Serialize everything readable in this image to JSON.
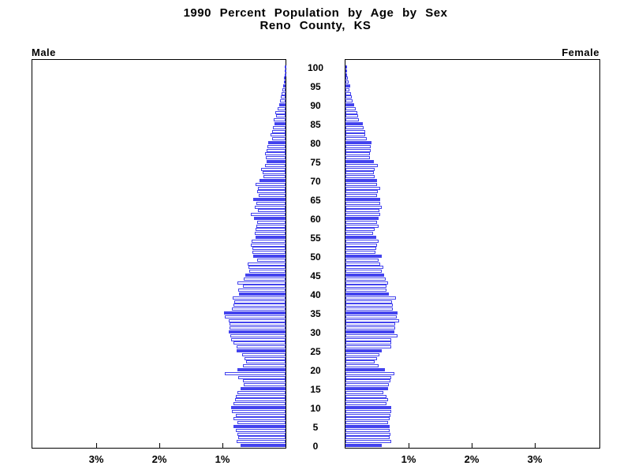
{
  "title": {
    "line1": "1990 Percent Population by Age by Sex",
    "line2": "Reno County, KS"
  },
  "panel_labels": {
    "left": "Male",
    "right": "Female"
  },
  "chart_data": {
    "type": "bar",
    "subtype": "population-pyramid",
    "title": "1990 Percent Population by Age by Sex",
    "subtitle": "Reno County, KS",
    "orientation": "horizontal back-to-back, ages 0-100 bottom to top",
    "unit": "percent of total population per single year of age",
    "age_axis_tick_labels": [
      "0",
      "5",
      "10",
      "15",
      "20",
      "25",
      "30",
      "35",
      "40",
      "45",
      "50",
      "55",
      "60",
      "65",
      "70",
      "75",
      "80",
      "85",
      "90",
      "95",
      "100"
    ],
    "x_axis": {
      "left_tick_labels": [
        "3%",
        "2%",
        "1%"
      ],
      "right_tick_labels": [
        "1%",
        "2%",
        "3%"
      ],
      "percent_per_tick": 1,
      "max_percent_shown": 4.0
    },
    "style": {
      "bar_color": "#4343ee",
      "axis_color": "#000000",
      "filled_bar_rule": "ages divisible by 5 solid blue; other ages white with blue outline"
    },
    "series": [
      {
        "name": "Male",
        "side": "left",
        "values": [
          0.71,
          0.78,
          0.75,
          0.76,
          0.79,
          0.83,
          0.76,
          0.83,
          0.79,
          0.85,
          0.86,
          0.83,
          0.8,
          0.79,
          0.76,
          0.71,
          0.66,
          0.68,
          0.75,
          0.96,
          0.76,
          0.68,
          0.63,
          0.65,
          0.69,
          0.78,
          0.78,
          0.83,
          0.86,
          0.88,
          0.9,
          0.89,
          0.89,
          0.9,
          0.96,
          0.98,
          0.85,
          0.83,
          0.81,
          0.84,
          0.74,
          0.75,
          0.68,
          0.76,
          0.66,
          0.64,
          0.58,
          0.59,
          0.6,
          0.45,
          0.51,
          0.53,
          0.53,
          0.55,
          0.54,
          0.48,
          0.49,
          0.48,
          0.46,
          0.45,
          0.5,
          0.55,
          0.44,
          0.49,
          0.46,
          0.51,
          0.43,
          0.45,
          0.44,
          0.48,
          0.41,
          0.35,
          0.36,
          0.39,
          0.33,
          0.3,
          0.31,
          0.33,
          0.3,
          0.29,
          0.28,
          0.21,
          0.24,
          0.21,
          0.2,
          0.18,
          0.19,
          0.15,
          0.16,
          0.13,
          0.1,
          0.09,
          0.08,
          0.06,
          0.05,
          0.04,
          0.02,
          0.02,
          0.01,
          0.01,
          0.01
        ]
      },
      {
        "name": "Female",
        "side": "right",
        "values": [
          0.58,
          0.73,
          0.7,
          0.71,
          0.7,
          0.7,
          0.68,
          0.7,
          0.71,
          0.73,
          0.73,
          0.65,
          0.68,
          0.65,
          0.6,
          0.67,
          0.69,
          0.71,
          0.73,
          0.77,
          0.63,
          0.53,
          0.46,
          0.5,
          0.54,
          0.58,
          0.72,
          0.73,
          0.73,
          0.83,
          0.78,
          0.79,
          0.79,
          0.85,
          0.81,
          0.83,
          0.75,
          0.75,
          0.74,
          0.8,
          0.69,
          0.65,
          0.65,
          0.68,
          0.64,
          0.61,
          0.58,
          0.6,
          0.55,
          0.53,
          0.58,
          0.48,
          0.49,
          0.5,
          0.53,
          0.49,
          0.44,
          0.46,
          0.53,
          0.5,
          0.53,
          0.55,
          0.54,
          0.58,
          0.55,
          0.55,
          0.5,
          0.51,
          0.55,
          0.5,
          0.5,
          0.46,
          0.45,
          0.46,
          0.51,
          0.45,
          0.39,
          0.39,
          0.4,
          0.4,
          0.41,
          0.34,
          0.31,
          0.31,
          0.29,
          0.28,
          0.21,
          0.2,
          0.19,
          0.16,
          0.14,
          0.11,
          0.1,
          0.09,
          0.06,
          0.08,
          0.05,
          0.04,
          0.03,
          0.01,
          0.03
        ]
      }
    ]
  }
}
